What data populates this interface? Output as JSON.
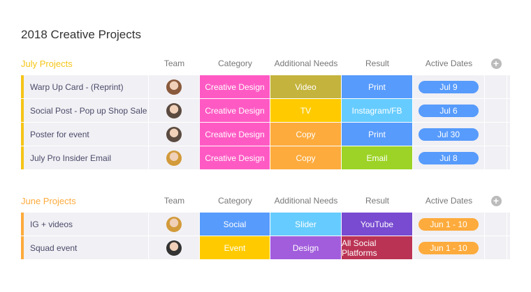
{
  "title": "2018 Creative Projects",
  "columns": {
    "team": "Team",
    "category": "Category",
    "needs": "Additional Needs",
    "result": "Result",
    "dates": "Active Dates"
  },
  "groups": [
    {
      "name": "July Projects",
      "color": "#f5c518",
      "rows": [
        {
          "name": "Warp Up Card - (Reprint)",
          "avatar": "#8a5a3c",
          "category": "Creative Design",
          "category_color": "#ff5ac4",
          "needs": "Video",
          "needs_color": "#c4b43e",
          "result": "Print",
          "result_color": "#579bfc",
          "dates": "Jul 9",
          "date_color": "#579bfc"
        },
        {
          "name": "Social Post - Pop up Shop Sale",
          "avatar": "#5a4a40",
          "category": "Creative Design",
          "category_color": "#ff5ac4",
          "needs": "TV",
          "needs_color": "#ffcb00",
          "result": "Instagram/FB",
          "result_color": "#66ccff",
          "dates": "Jul 6",
          "date_color": "#579bfc"
        },
        {
          "name": "Poster for event",
          "avatar": "#5a4a40",
          "category": "Creative Design",
          "category_color": "#ff5ac4",
          "needs": "Copy",
          "needs_color": "#fdab3d",
          "result": "Print",
          "result_color": "#579bfc",
          "dates": "Jul 30",
          "date_color": "#579bfc"
        },
        {
          "name": "July Pro Insider Email",
          "avatar": "#d29a3a",
          "category": "Creative Design",
          "category_color": "#ff5ac4",
          "needs": "Copy",
          "needs_color": "#fdab3d",
          "result": "Email",
          "result_color": "#9cd326",
          "dates": "Jul 8",
          "date_color": "#579bfc"
        }
      ]
    },
    {
      "name": "June Projects",
      "color": "#fdab3d",
      "rows": [
        {
          "name": "IG + videos",
          "avatar": "#d29a3a",
          "category": "Social",
          "category_color": "#579bfc",
          "needs": "Slider",
          "needs_color": "#66ccff",
          "result": "YouTube",
          "result_color": "#784bd1",
          "dates": "Jun 1 - 10",
          "date_color": "#fdab3d"
        },
        {
          "name": "Squad event",
          "avatar": "#333333",
          "category": "Event",
          "category_color": "#ffcb00",
          "needs": "Design",
          "needs_color": "#a25ddc",
          "result": "All Social Platforms",
          "result_color": "#bb3354",
          "dates": "Jun 1 - 10",
          "date_color": "#fdab3d"
        }
      ]
    }
  ]
}
